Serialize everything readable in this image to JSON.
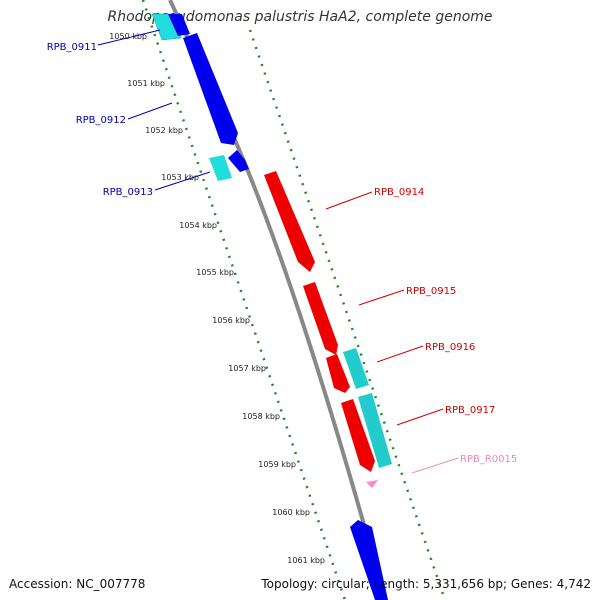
{
  "title": "Rhodopseudomonas palustris HaA2, complete genome",
  "footer": {
    "accession": "Accession: NC_007778",
    "summary": "Topology: circular; Length: 5,331,656 bp; Genes: 4,742"
  },
  "kbp_ticks": [
    "1050 kbp",
    "1051 kbp",
    "1052 kbp",
    "1053 kbp",
    "1054 kbp",
    "1055 kbp",
    "1056 kbp",
    "1057 kbp",
    "1058 kbp",
    "1059 kbp",
    "1060 kbp",
    "1061 kbp"
  ],
  "gene_labels": [
    {
      "text": "RPB_0911",
      "color": "#0000aa"
    },
    {
      "text": "RPB_0912",
      "color": "#0000aa"
    },
    {
      "text": "RPB_0913",
      "color": "#0000aa"
    },
    {
      "text": "RPB_0914",
      "color": "#cc0000"
    },
    {
      "text": "RPB_0915",
      "color": "#cc0000"
    },
    {
      "text": "RPB_0916",
      "color": "#cc0000"
    },
    {
      "text": "RPB_0917",
      "color": "#cc0000"
    },
    {
      "text": "RPB_R0015",
      "color": "#ee88bb"
    }
  ],
  "colors": {
    "backbone": "#888888",
    "dotted_ring": "#228822",
    "blue_gene": "#0000ee",
    "cyan_gene": "#22dddd",
    "red_gene": "#ee0000",
    "pink_rna": "#ff88cc"
  }
}
